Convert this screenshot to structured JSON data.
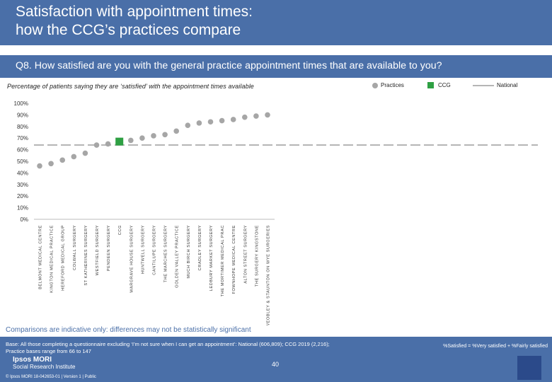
{
  "header": {
    "title_line1": "Satisfaction with appointment times:",
    "title_line2": "how the CCG’s practices compare"
  },
  "question": "Q8. How satisfied are you with the general practice appointment times that are available to you?",
  "subtitle": "Percentage of patients saying they are ‘satisfied’ with the appointment times available",
  "legend": {
    "practices": "Practices",
    "ccg": "CCG",
    "national": "National"
  },
  "colors": {
    "practices": "#a6a6a6",
    "ccg": "#2ea043",
    "national": "#b5b5b5",
    "brand": "#4a6fa8"
  },
  "chart_data": {
    "type": "scatter",
    "title": "Q8. How satisfied are you with the general practice appointment times that are available to you?",
    "ylabel": "Percentage of patients saying they are ‘satisfied’ with the appointment times available",
    "ylim": [
      0,
      100
    ],
    "yticks": [
      "0%",
      "10%",
      "20%",
      "30%",
      "40%",
      "50%",
      "60%",
      "70%",
      "80%",
      "90%",
      "100%"
    ],
    "national": 64,
    "categories": [
      "BELMONT MEDICAL CENTRE",
      "KINGTON MEDICAL PRACTICE",
      "HEREFORD MEDICAL GROUP",
      "COLWALL SURGERY",
      "ST KATHERINES SURGERY",
      "WESTFIELD SURGERY",
      "PENDEEN SURGERY",
      "CCG",
      "WARGRAVE HOUSE SURGERY",
      "HUNTWELL SURGERY",
      "CANTILUPE SURGERY",
      "THE MARCHES SURGERY",
      "GOLDEN VALLEY PRACTICE",
      "MUCH BIRCH SURGERY",
      "CRADLEY SURGERY",
      "LEDBURY MARKET SURGERY",
      "THE MORTIMER MEDICAL PRAC",
      "FOWNHOPE MEDICAL CENTRE",
      "ALTON STREET SURGERY",
      "THE SURGERY KINGSTONE",
      "WEOBLEY & STAUNTON ON WYE SURGERIES"
    ],
    "values": [
      46,
      48,
      51,
      54,
      57,
      64,
      65,
      67,
      68,
      70,
      72,
      73,
      76,
      81,
      83,
      84,
      85,
      86,
      88,
      89,
      90
    ],
    "ccg_index": 7
  },
  "comparisons_note": "Comparisons are indicative only: differences may not be statistically significant",
  "base": {
    "line1": "Base: All those completing a questionnaire excluding ‘I’m not sure when I can get an appointment’: National (606,809); CCG 2019 (2,216);",
    "line2": "Practice bases range from 66 to 147"
  },
  "satisfied_definition": "%Satisfied = %Very satisfied + %Fairly satisfied",
  "logo": {
    "line1": "Ipsos MORI",
    "line2": "Social Research Institute"
  },
  "footer": "© Ipsos MORI      18-042653-01 | Version 1 | Public",
  "page_number": "40"
}
